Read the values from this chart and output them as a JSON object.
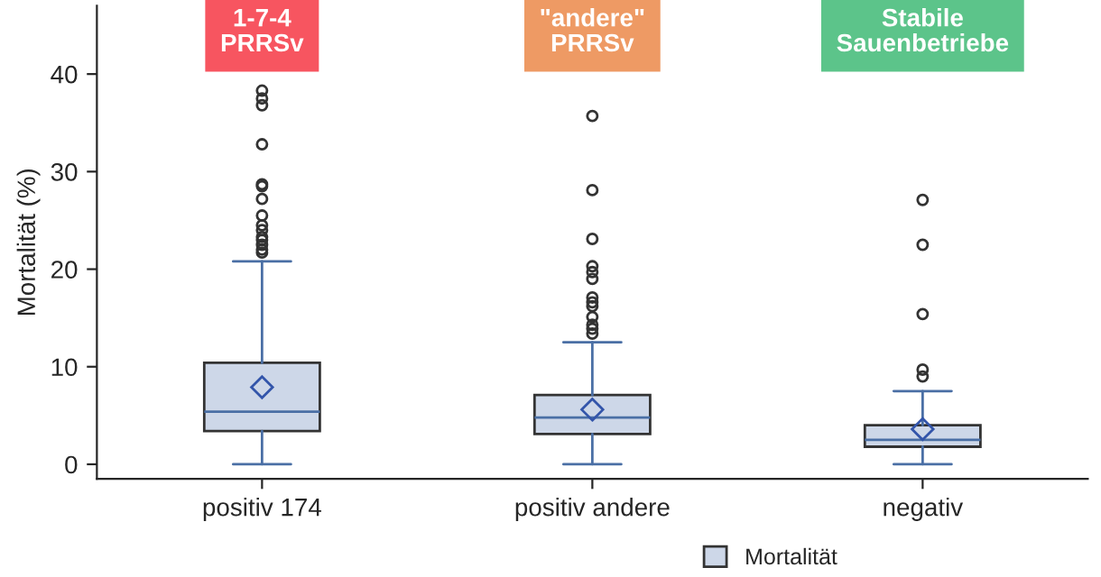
{
  "chart_data": {
    "type": "box",
    "ylabel": "Mortalität (%)",
    "categories": [
      "positiv 174",
      "positiv andere",
      "negativ"
    ],
    "ylim": [
      -1.5,
      47
    ],
    "yticks": [
      0,
      10,
      20,
      30,
      40
    ],
    "grid": false,
    "legend": "bottom",
    "annotations": [
      "1-7-4\nPRRSv",
      "\"andere\"\nPRRSv",
      "Stabile\nSauenbetriebe"
    ],
    "series": [
      {
        "name": "Mortalität",
        "color": "#cdd7e8",
        "boxes": [
          {
            "low": 0,
            "q1": 3.4,
            "median": 5.4,
            "q3": 10.4,
            "high": 20.8,
            "mean": 7.9,
            "outliers": [
              21.7,
              22,
              22.5,
              23,
              23.3,
              24,
              24.5,
              25.5,
              27.2,
              28.5,
              28.7,
              32.8,
              36.8,
              37.5,
              38.3
            ]
          },
          {
            "low": 0,
            "q1": 3.1,
            "median": 4.8,
            "q3": 7.1,
            "high": 12.5,
            "mean": 5.6,
            "outliers": [
              13.4,
              13.9,
              14.3,
              15.1,
              16.2,
              16.6,
              17.1,
              19.0,
              19.7,
              20.3,
              23.1,
              28.1,
              35.7
            ]
          },
          {
            "low": 0,
            "q1": 1.8,
            "median": 2.5,
            "q3": 4.0,
            "high": 7.5,
            "mean": 3.6,
            "outliers": [
              9.0,
              9.7,
              15.4,
              22.5,
              27.1
            ]
          }
        ]
      }
    ]
  }
}
